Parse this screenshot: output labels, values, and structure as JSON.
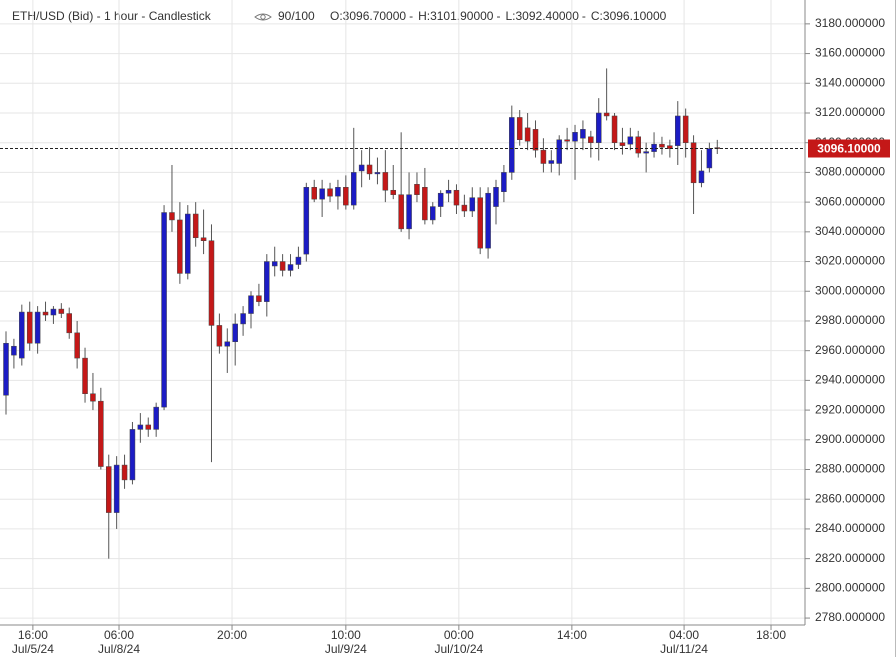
{
  "chart_data": {
    "type": "candlestick",
    "title": "ETH/USD (Bid) - 1 hour - Candlestick",
    "zoom_label": "90/100",
    "ohlc_labels": [
      "O:3096.70000",
      "H:3101.90000",
      "L:3092.40000",
      "C:3096.10000"
    ],
    "up_color": "#1c1cc4",
    "down_color": "#c41818",
    "grid": true,
    "open": [
      2930,
      2957,
      2955,
      2986,
      2965,
      2986,
      2984,
      2988,
      2985,
      2972,
      2955,
      2931,
      2926,
      2882,
      2851,
      2883,
      2873,
      2907,
      2910,
      2907,
      2922,
      3053,
      3048,
      3012,
      3052,
      3036,
      3034,
      2977,
      2963,
      2966,
      2978,
      2985,
      2997,
      2993,
      3017,
      3020,
      3014,
      3018,
      3025,
      3070,
      3062,
      3069,
      3064,
      3070,
      3058,
      3081,
      3085,
      3079,
      3080,
      3068,
      3065,
      3042,
      3072,
      3070,
      3048,
      3057,
      3066,
      3068,
      3058,
      3054,
      3063,
      3029,
      3057,
      3067,
      3080,
      3117,
      3110,
      3109,
      3095,
      3086,
      3086,
      3102,
      3101,
      3103,
      3104,
      3100,
      3120,
      3118,
      3100,
      3099,
      3104,
      3093,
      3094,
      3099,
      3098,
      3098,
      3118,
      3100,
      3073,
      3083,
      3096.7
    ],
    "high": [
      2973,
      2968,
      2991,
      2993,
      2990,
      2993,
      2990,
      2992,
      2989,
      2980,
      2962,
      2945,
      2935,
      2890,
      2889,
      2890,
      2912,
      2918,
      2915,
      2925,
      3058,
      3085,
      3060,
      3058,
      3060,
      3055,
      3045,
      2985,
      2975,
      2985,
      2990,
      3000,
      3005,
      3025,
      3030,
      3025,
      3025,
      3030,
      3073,
      3075,
      3075,
      3073,
      3075,
      3078,
      3110,
      3095,
      3097,
      3090,
      3095,
      3085,
      3107,
      3080,
      3080,
      3083,
      3060,
      3068,
      3075,
      3072,
      3065,
      3070,
      3070,
      3070,
      3075,
      3085,
      3125,
      3122,
      3120,
      3115,
      3103,
      3095,
      3105,
      3110,
      3112,
      3115,
      3108,
      3130,
      3150,
      3120,
      3110,
      3110,
      3108,
      3100,
      3107,
      3104,
      3102,
      3128,
      3123,
      3105,
      3095,
      3100,
      3101.9
    ],
    "low": [
      2917,
      2948,
      2950,
      2960,
      2958,
      2980,
      2978,
      2982,
      2968,
      2948,
      2925,
      2920,
      2880,
      2820,
      2840,
      2867,
      2870,
      2898,
      2902,
      2902,
      2920,
      3040,
      3005,
      3008,
      3030,
      3025,
      2885,
      2958,
      2945,
      2950,
      2970,
      2975,
      2990,
      2983,
      3010,
      3010,
      3010,
      3015,
      3020,
      3060,
      3050,
      3060,
      3055,
      3055,
      3055,
      3070,
      3075,
      3072,
      3060,
      3062,
      3040,
      3035,
      3060,
      3045,
      3045,
      3050,
      3060,
      3052,
      3050,
      3050,
      3025,
      3022,
      3045,
      3060,
      3075,
      3098,
      3095,
      3090,
      3080,
      3080,
      3078,
      3095,
      3075,
      3095,
      3090,
      3088,
      3115,
      3095,
      3092,
      3095,
      3090,
      3080,
      3090,
      3092,
      3090,
      3085,
      3090,
      3052,
      3070,
      3080,
      3092.4
    ],
    "close": [
      2965,
      2963,
      2986,
      2965,
      2986,
      2984,
      2988,
      2985,
      2972,
      2955,
      2931,
      2926,
      2882,
      2851,
      2883,
      2873,
      2907,
      2910,
      2907,
      2922,
      3053,
      3048,
      3012,
      3052,
      3036,
      3034,
      2977,
      2963,
      2966,
      2978,
      2985,
      2997,
      2993,
      3020,
      3020,
      3014,
      3018,
      3023,
      3070,
      3062,
      3069,
      3064,
      3070,
      3058,
      3080,
      3085,
      3079,
      3080,
      3068,
      3065,
      3042,
      3065,
      3065,
      3048,
      3057,
      3066,
      3068,
      3058,
      3054,
      3063,
      3029,
      3066,
      3070,
      3080,
      3117,
      3102,
      3101,
      3095,
      3086,
      3088,
      3102,
      3101,
      3107,
      3109,
      3100,
      3120,
      3118,
      3100,
      3098,
      3104,
      3093,
      3094,
      3099,
      3097,
      3096,
      3118,
      3100,
      3073,
      3081,
      3096,
      3096.1
    ],
    "xlim": [
      -0.76,
      101.1
    ],
    "xticks": [
      {
        "value": 3.4,
        "label": "16:00",
        "date": "Jul/5/24"
      },
      {
        "value": 14.3,
        "label": "06:00",
        "date": "Jul/8/24"
      },
      {
        "value": 28.6,
        "label": "20:00"
      },
      {
        "value": 43,
        "label": "10:00",
        "date": "Jul/9/24"
      },
      {
        "value": 57.3,
        "label": "00:00",
        "date": "Jul/10/24"
      },
      {
        "value": 71.6,
        "label": "14:00"
      },
      {
        "value": 85.8,
        "label": "04:00",
        "date": "Jul/11/24"
      },
      {
        "value": 96.8,
        "label": "18:00"
      }
    ],
    "ylim": [
      2775.33,
      3189.33
    ],
    "yticks": [
      {
        "value": 2780,
        "label": "2780.000000"
      },
      {
        "value": 2800,
        "label": "2800.000000"
      },
      {
        "value": 2820,
        "label": "2820.000000"
      },
      {
        "value": 2840,
        "label": "2840.000000"
      },
      {
        "value": 2860,
        "label": "2860.000000"
      },
      {
        "value": 2880,
        "label": "2880.000000"
      },
      {
        "value": 2900,
        "label": "2900.000000"
      },
      {
        "value": 2920,
        "label": "2920.000000"
      },
      {
        "value": 2940,
        "label": "2940.000000"
      },
      {
        "value": 2960,
        "label": "2960.000000"
      },
      {
        "value": 2980,
        "label": "2980.000000"
      },
      {
        "value": 3000,
        "label": "3000.000000"
      },
      {
        "value": 3020,
        "label": "3020.000000"
      },
      {
        "value": 3040,
        "label": "3040.000000"
      },
      {
        "value": 3060,
        "label": "3060.000000"
      },
      {
        "value": 3080,
        "label": "3080.000000"
      },
      {
        "value": 3100,
        "label": "3100.000000"
      },
      {
        "value": 3120,
        "label": "3120.000000"
      },
      {
        "value": 3140,
        "label": "3140.000000"
      },
      {
        "value": 3160,
        "label": "3160.000000"
      },
      {
        "value": 3180,
        "label": "3180.000000"
      }
    ],
    "last_price": {
      "value": 3096.1,
      "label": "3096.10000"
    }
  }
}
